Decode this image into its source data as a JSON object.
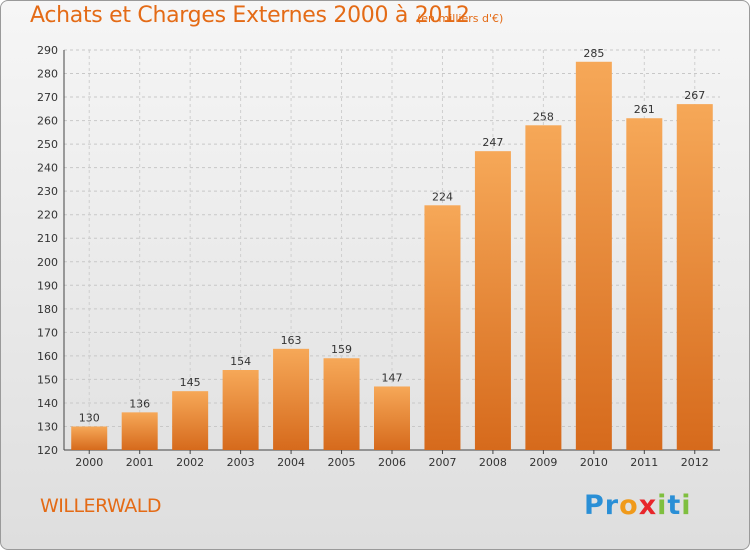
{
  "title": "Achats et Charges Externes 2000 à 2012",
  "subtitle": "(en milliers d'€)",
  "commune": "WILLERWALD",
  "logo": {
    "text": "Proxiti",
    "letters": [
      "P",
      "r",
      "o",
      "x",
      "i",
      "t",
      "i"
    ],
    "colors": [
      "#2a8fd6",
      "#2a8fd6",
      "#f09a1a",
      "#e8262b",
      "#7fbf3f",
      "#2a8fd6",
      "#7fbf3f"
    ]
  },
  "colors": {
    "accent": "#e46b16",
    "bar_light": "#f5a55a",
    "bar_dark": "#d8691c"
  },
  "chart_data": {
    "type": "bar",
    "title": "Achats et Charges Externes 2000 à 2012",
    "categories": [
      "2000",
      "2001",
      "2002",
      "2003",
      "2004",
      "2005",
      "2006",
      "2007",
      "2008",
      "2009",
      "2010",
      "2011",
      "2012"
    ],
    "values": [
      130,
      136,
      145,
      154,
      163,
      159,
      147,
      224,
      247,
      258,
      285,
      261,
      267
    ],
    "ylim": [
      120,
      290
    ],
    "yticks": [
      120,
      130,
      140,
      150,
      160,
      170,
      180,
      190,
      200,
      210,
      220,
      230,
      240,
      250,
      260,
      270,
      280,
      290
    ],
    "grid": true
  }
}
